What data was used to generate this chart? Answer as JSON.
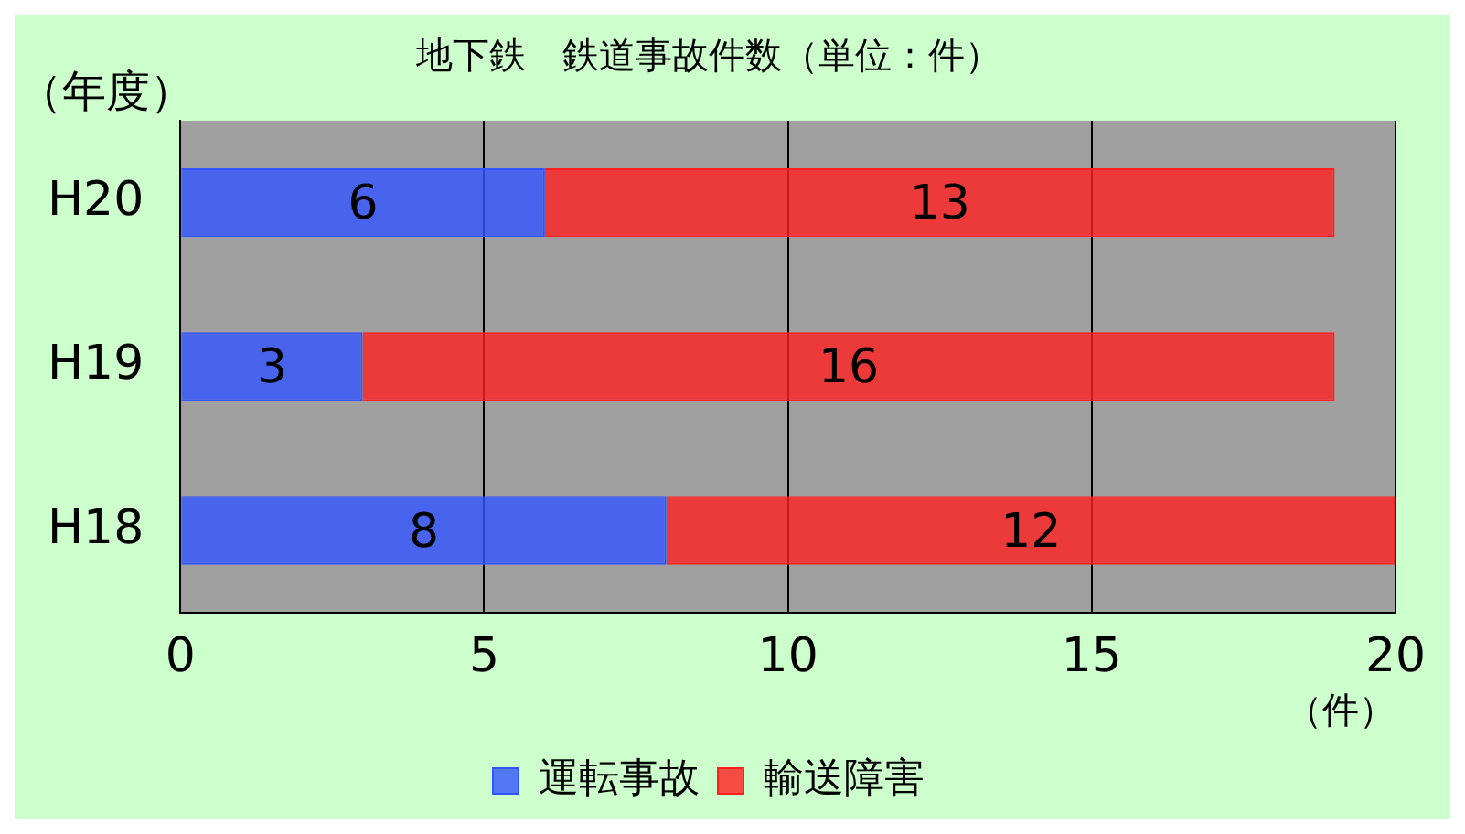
{
  "chart_data": {
    "type": "bar",
    "orientation": "horizontal",
    "stacked": true,
    "title": "地下鉄　鉄道事故件数（単位：件）",
    "xlabel": "（件）",
    "ylabel": "（年度）",
    "categories": [
      "H20",
      "H19",
      "H18"
    ],
    "series": [
      {
        "name": "運転事故",
        "color": "#3355ff",
        "values": [
          6,
          3,
          8
        ]
      },
      {
        "name": "輸送障害",
        "color": "#ff2020",
        "values": [
          13,
          16,
          12
        ]
      }
    ],
    "xlim": [
      0,
      20
    ],
    "xticks": [
      0,
      5,
      10,
      15,
      20
    ],
    "grid": "x",
    "legend": "bottom",
    "data_labels": true
  }
}
